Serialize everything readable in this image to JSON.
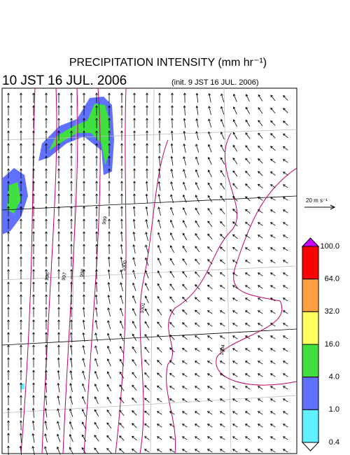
{
  "header": {
    "title": "PRECIPITATION INTENSITY (mm hr⁻¹)",
    "valid": "10 JST 16 JUL. 2006",
    "init": "(init. 9 JST 16 JUL. 2006)"
  },
  "vector_scale": "20 m s⁻¹",
  "contour_labels": [
    "996",
    "997",
    "998",
    "999",
    "1000",
    "1001",
    "1004"
  ],
  "colorbar": {
    "levels": [
      "100.0",
      "64.0",
      "32.0",
      "16.0",
      "4.0",
      "1.0",
      "0.4"
    ],
    "over_color": "#cc00ff",
    "colors": [
      "#ff0000",
      "#ffa040",
      "#ffff60",
      "#40e040",
      "#6070ff",
      "#60f0ff"
    ],
    "under_color": "#ffffff"
  }
}
